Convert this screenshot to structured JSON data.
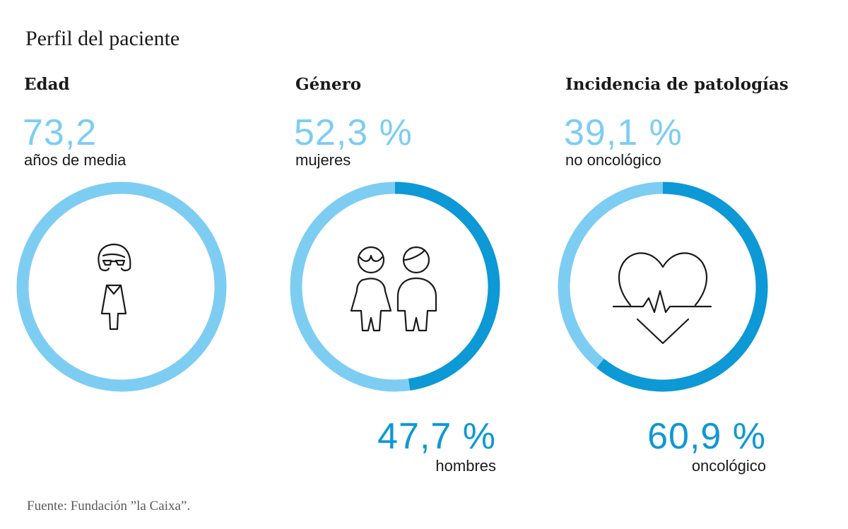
{
  "title": "Perfil del paciente",
  "source": "Fuente: Fundación ”la Caixa”.",
  "colors": {
    "light": "#7dcdf3",
    "dark": "#0d98d6"
  },
  "panels": [
    {
      "heading": "Edad",
      "value": "73,2",
      "value_label": "años de media",
      "icon": "woman-with-glasses-icon"
    },
    {
      "heading": "Género",
      "value": "52,3 %",
      "value_label": "mujeres",
      "value2": "47,7 %",
      "value2_label": "hombres",
      "icon": "couple-icon"
    },
    {
      "heading": "Incidencia de patologías",
      "value": "39,1 %",
      "value_label": "no oncológico",
      "value2": "60,9 %",
      "value2_label": "oncológico",
      "icon": "heart-pulse-icon"
    }
  ],
  "chart_data": [
    {
      "type": "pie",
      "title": "Edad",
      "segments": [
        {
          "label": "años de media",
          "value": 73.2
        }
      ]
    },
    {
      "type": "pie",
      "title": "Género",
      "segments": [
        {
          "label": "mujeres",
          "value": 52.3
        },
        {
          "label": "hombres",
          "value": 47.7
        }
      ]
    },
    {
      "type": "pie",
      "title": "Incidencia de patologías",
      "segments": [
        {
          "label": "no oncológico",
          "value": 39.1
        },
        {
          "label": "oncológico",
          "value": 60.9
        }
      ]
    }
  ]
}
